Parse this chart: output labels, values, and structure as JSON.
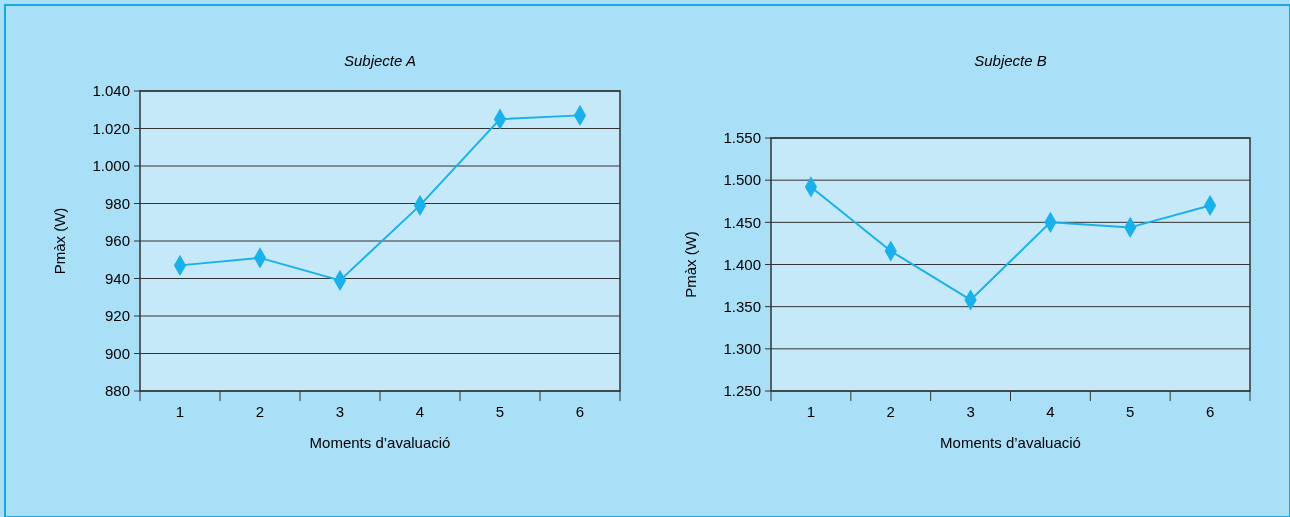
{
  "chart_data": [
    {
      "type": "line",
      "title": "Subjecte A",
      "xlabel": "Moments d’avaluació",
      "ylabel": "Pmàx (W)",
      "categories": [
        "1",
        "2",
        "3",
        "4",
        "5",
        "6"
      ],
      "series": [
        {
          "color": "#1ab0ea",
          "values": [
            947,
            951,
            939,
            979,
            1025,
            1027
          ]
        }
      ],
      "ylim": [
        880,
        1040
      ],
      "yticks": [
        880,
        900,
        920,
        940,
        960,
        980,
        {
          "value": 1000,
          "label": "1.000"
        },
        {
          "value": 1020,
          "label": "1.020"
        },
        {
          "value": 1040,
          "label": "1.040"
        }
      ],
      "grid": "y",
      "marker": "diamond",
      "line_style": "solid"
    },
    {
      "type": "line",
      "title": "Subjecte B",
      "xlabel": "Moments d’avaluació",
      "ylabel": "Pmàx (W)",
      "categories": [
        "1",
        "2",
        "3",
        "4",
        "5",
        "6"
      ],
      "series": [
        {
          "color": "#1ab0ea",
          "values": [
            1492,
            1416,
            1358,
            1450,
            1444,
            1470
          ]
        }
      ],
      "ylim": [
        1250,
        1550
      ],
      "yticks": [
        {
          "value": 1250,
          "label": "1.250"
        },
        {
          "value": 1300,
          "label": "1.300"
        },
        {
          "value": 1350,
          "label": "1.350"
        },
        {
          "value": 1400,
          "label": "1.400"
        },
        {
          "value": 1450,
          "label": "1.450"
        },
        {
          "value": 1500,
          "label": "1.500"
        },
        {
          "value": 1550,
          "label": "1.550"
        }
      ],
      "grid": "y",
      "marker": "diamond",
      "line_style": "solid"
    }
  ]
}
